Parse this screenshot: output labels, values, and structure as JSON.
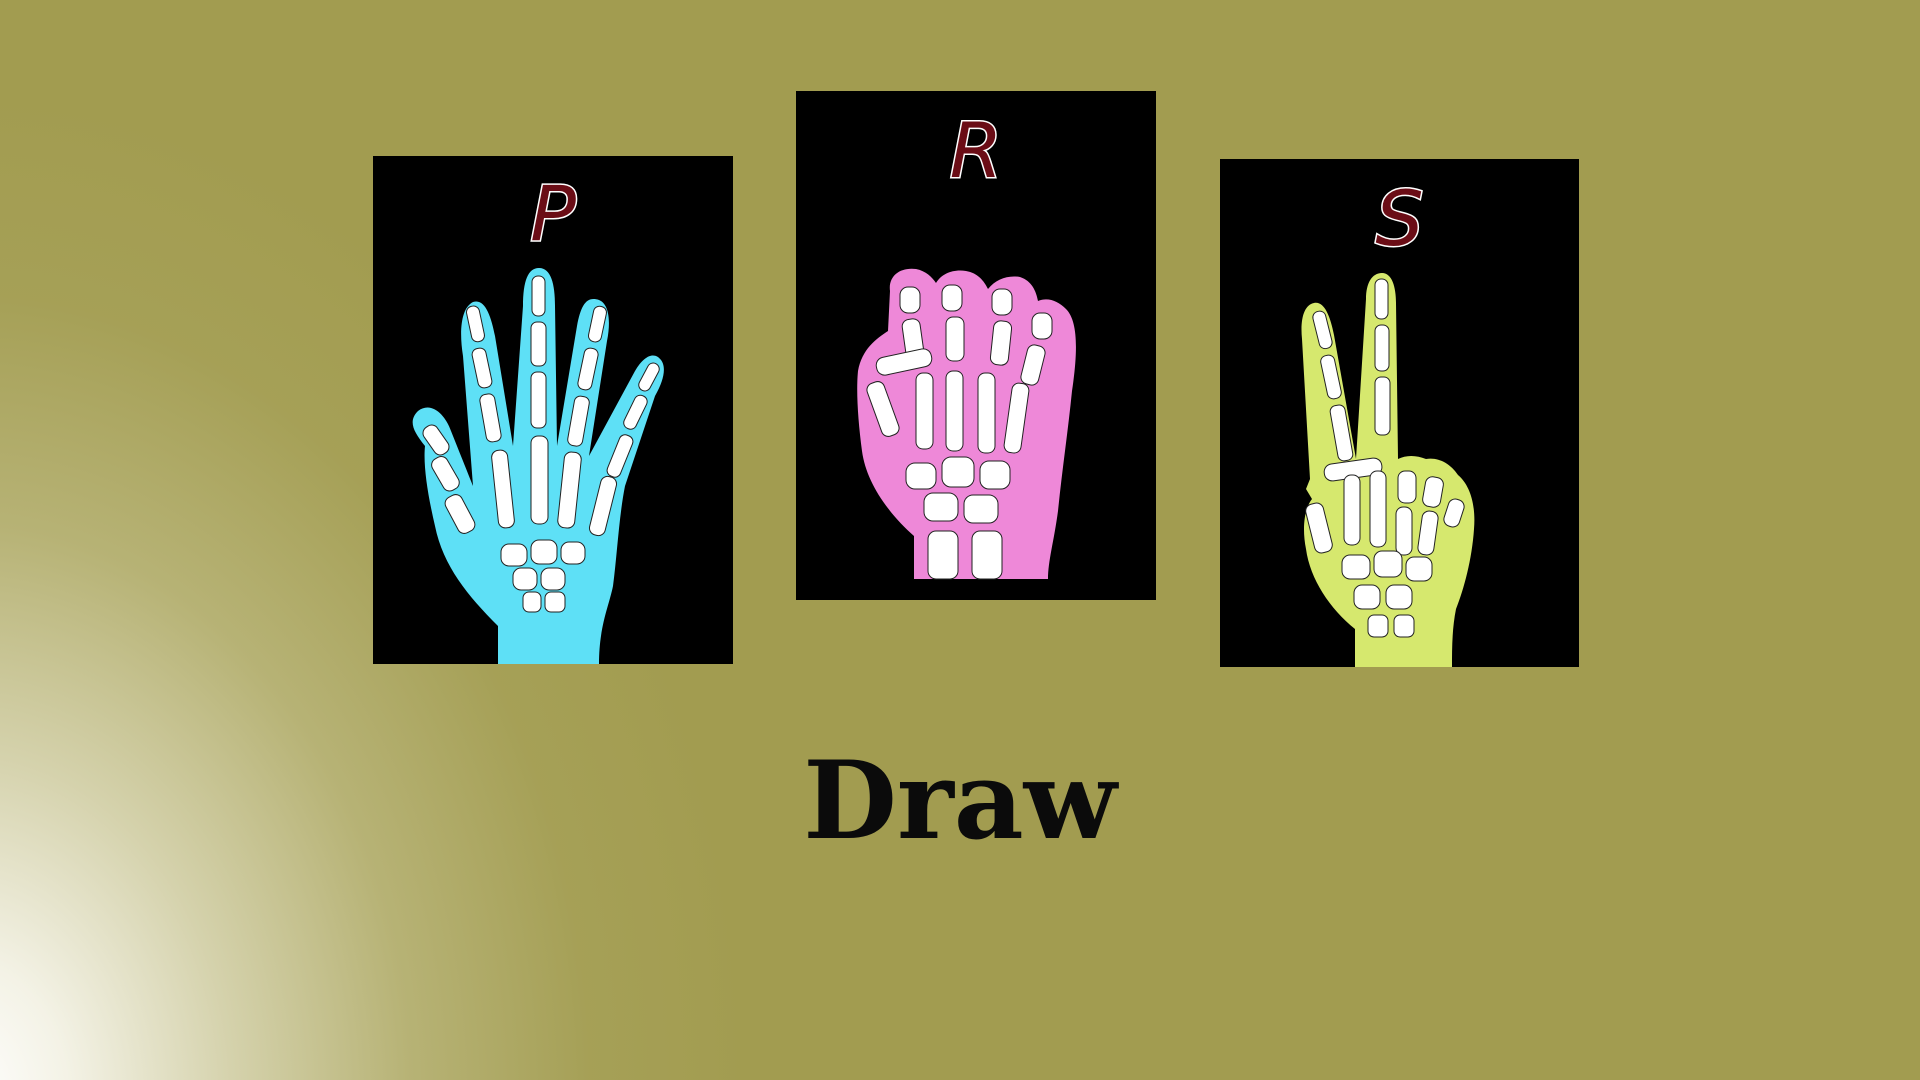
{
  "cards": [
    {
      "id": "paper",
      "letter": "P",
      "hand_color": "#5ee0f6"
    },
    {
      "id": "rock",
      "letter": "R",
      "hand_color": "#ee88d8"
    },
    {
      "id": "scissors",
      "letter": "S",
      "hand_color": "#d6e86e"
    }
  ],
  "result": {
    "text": "Draw"
  },
  "colors": {
    "background": "#a29c50",
    "card_background": "#000000",
    "letter": "#6b0d16",
    "bone": "#ffffff"
  }
}
